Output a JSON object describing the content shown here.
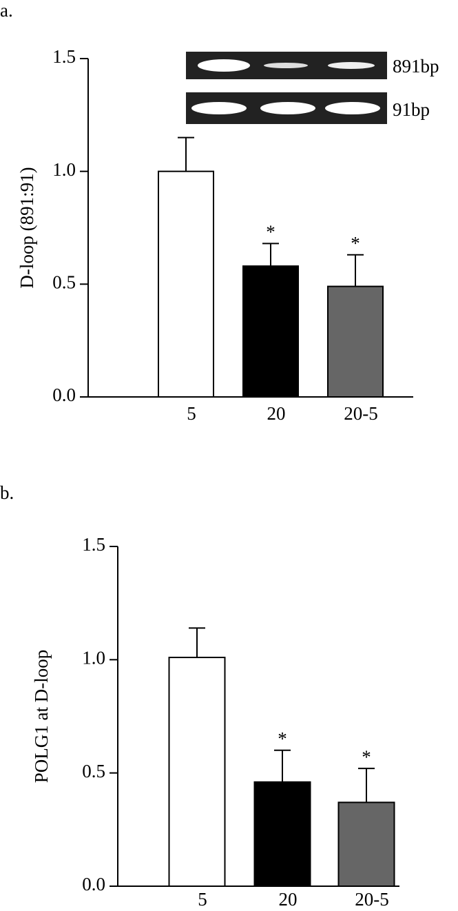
{
  "chart_data": [
    {
      "type": "bar",
      "panel_label": "a.",
      "y_label": "D-loop (891:91)",
      "categories": [
        "5",
        "20",
        "20-5"
      ],
      "values": [
        1.0,
        0.58,
        0.49
      ],
      "errors": [
        0.15,
        0.1,
        0.14
      ],
      "colors": [
        "#ffffff",
        "#000000",
        "#666666"
      ],
      "annotations": [
        {
          "category": "20",
          "text": "*"
        },
        {
          "category": "20-5",
          "text": "*"
        }
      ],
      "gel_labels": [
        "891bp",
        "91bp"
      ],
      "ylim": [
        0,
        1.5
      ],
      "yticks": [
        {
          "value": 0,
          "label": "0.0"
        },
        {
          "value": 0.5,
          "label": "0.5"
        },
        {
          "value": 1,
          "label": "1.0"
        },
        {
          "value": 1.5,
          "label": "1.5"
        }
      ]
    },
    {
      "type": "bar",
      "panel_label": "b.",
      "y_label": "POLG1 at D-loop",
      "categories": [
        "5",
        "20",
        "20-5"
      ],
      "values": [
        1.01,
        0.46,
        0.37
      ],
      "errors": [
        0.13,
        0.14,
        0.15
      ],
      "colors": [
        "#ffffff",
        "#000000",
        "#666666"
      ],
      "annotations": [
        {
          "category": "20",
          "text": "*"
        },
        {
          "category": "20-5",
          "text": "*"
        }
      ],
      "ylim": [
        0,
        1.5
      ],
      "yticks": [
        {
          "value": 0,
          "label": "0.0"
        },
        {
          "value": 0.5,
          "label": "0.5"
        },
        {
          "value": 1,
          "label": "1.0"
        },
        {
          "value": 1.5,
          "label": "1.5"
        }
      ]
    }
  ]
}
